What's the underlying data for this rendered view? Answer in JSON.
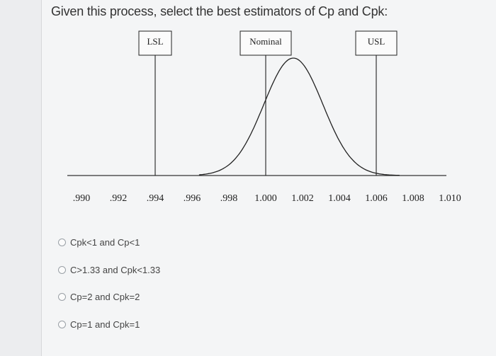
{
  "question": {
    "text": "Given this process, select the best estimators of Cp and Cpk:"
  },
  "figure": {
    "spec_labels": {
      "lsl": "LSL",
      "nominal": "Nominal",
      "usl": "USL"
    },
    "spec_values": {
      "lsl": 0.994,
      "nominal": 1.0,
      "usl": 1.006
    },
    "x_ticks": [
      ".990",
      ".992",
      ".994",
      ".996",
      ".998",
      "1.000",
      "1.002",
      "1.004",
      "1.006",
      "1.008",
      "1.010"
    ],
    "x_range": [
      0.99,
      1.01
    ],
    "distribution": {
      "mean": 1.0015,
      "sigma": 0.0016
    }
  },
  "options": [
    {
      "label": "Cpk<1 and Cp<1"
    },
    {
      "label": "C>1.33 and Cpk<1.33"
    },
    {
      "label": "Cp=2 and Cpk=2"
    },
    {
      "label": "Cp=1 and Cpk=1"
    }
  ],
  "colors": {
    "line": "#222222",
    "axis": "#333333"
  }
}
